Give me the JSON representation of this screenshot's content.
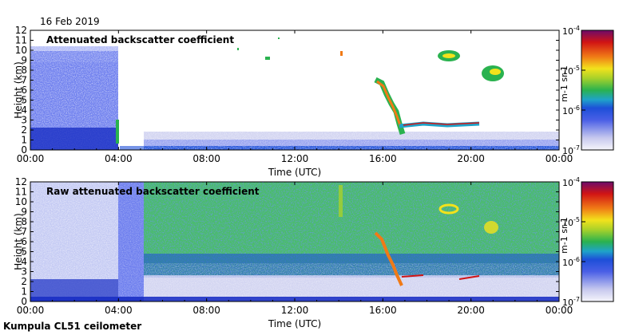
{
  "date": "16 Feb 2019",
  "footer": "Kumpula CL51 ceilometer",
  "chart_data": [
    {
      "type": "heatmap",
      "title": "Attenuated backscatter coefficient",
      "xlabel": "Time (UTC)",
      "ylabel": "Height (km)",
      "xlim": [
        0,
        24
      ],
      "ylim": [
        0,
        12
      ],
      "x_ticks": [
        "00:00",
        "04:00",
        "08:00",
        "12:00",
        "16:00",
        "20:00",
        "00:00"
      ],
      "y_ticks": [
        "0",
        "1",
        "2",
        "3",
        "4",
        "5",
        "6",
        "7",
        "8",
        "9",
        "10",
        "11",
        "12"
      ],
      "colorbar": {
        "scale": "log",
        "range": [
          1e-07,
          0.0001
        ],
        "label": "m-1 sr-1",
        "ticks": [
          "10-7",
          "10-6",
          "10-5",
          "10-4"
        ]
      }
    },
    {
      "type": "heatmap",
      "title": "Raw attenuated backscatter coefficient",
      "xlabel": "Time (UTC)",
      "ylabel": "Height (km)",
      "xlim": [
        0,
        24
      ],
      "ylim": [
        0,
        12
      ],
      "x_ticks": [
        "00:00",
        "04:00",
        "08:00",
        "12:00",
        "16:00",
        "20:00",
        "00:00"
      ],
      "y_ticks": [
        "0",
        "1",
        "2",
        "3",
        "4",
        "5",
        "6",
        "7",
        "8",
        "9",
        "10",
        "11",
        "12"
      ],
      "colorbar": {
        "scale": "log",
        "range": [
          1e-07,
          0.0001
        ],
        "label": "m-1 sr-1",
        "ticks": [
          "10-7",
          "10-6",
          "10-5",
          "10-4"
        ]
      }
    }
  ]
}
